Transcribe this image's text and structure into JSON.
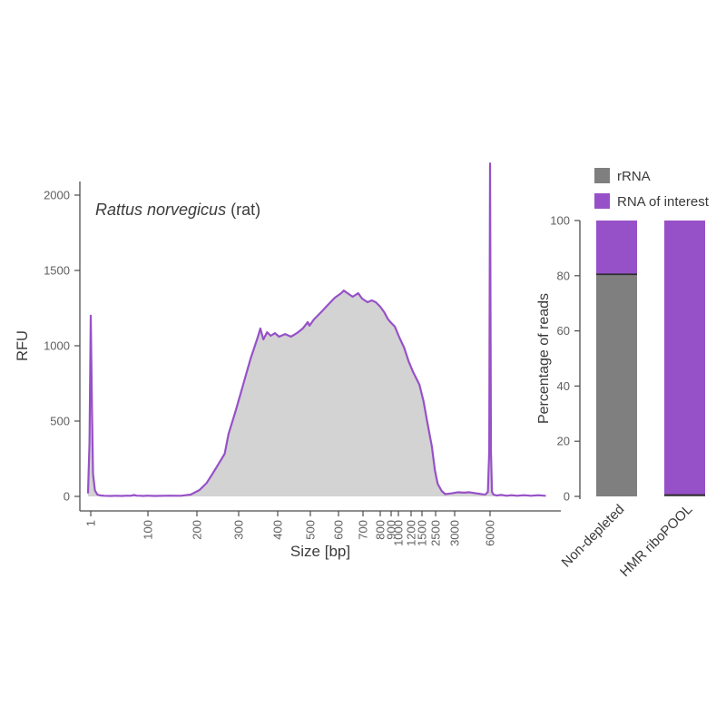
{
  "figure": {
    "background": "#ffffff"
  },
  "colors": {
    "purple": "#9751C8",
    "gray_bar": "#7F7F7F",
    "trace_fill": "#D3D3D3",
    "axis": "#4d4d4d",
    "tick_text": "#5f5f5f",
    "text": "#3a3a3a",
    "divider": "#2f2f2f"
  },
  "chart_data": [
    {
      "type": "area",
      "title_species": "Rattus norvegicus",
      "title_suffix": " (rat)",
      "xlabel": "Size [bp]",
      "ylabel": "RFU",
      "ylim": [
        0,
        2000
      ],
      "yticks": [
        0,
        500,
        1000,
        1500,
        2000
      ],
      "xticks": [
        1,
        100,
        200,
        300,
        400,
        500,
        600,
        700,
        800,
        900,
        1000,
        1200,
        1500,
        2500,
        3000,
        6000
      ],
      "x_scale": "instrument-log",
      "x_scale_anchors": [
        [
          1,
          0.023
        ],
        [
          100,
          0.1437
        ],
        [
          200,
          0.2471
        ],
        [
          300,
          0.3352
        ],
        [
          400,
          0.4176
        ],
        [
          500,
          0.4866
        ],
        [
          600,
          0.546
        ],
        [
          700,
          0.5977
        ],
        [
          800,
          0.6341
        ],
        [
          900,
          0.6571
        ],
        [
          1000,
          0.6724
        ],
        [
          1200,
          0.6992
        ],
        [
          1500,
          0.7222
        ],
        [
          2500,
          0.751
        ],
        [
          3000,
          0.7912
        ],
        [
          6000,
          0.8659
        ],
        [
          20000,
          1.0
        ]
      ],
      "line_color": "#9751C8",
      "fill_color": "#D3D3D3",
      "grid": false,
      "annotations": [
        "lower marker peak at 1 bp ~1200 RFU",
        "upper marker peak at 6000 bp ~2210 RFU (clipped above axis max)"
      ],
      "points": [
        [
          0.8,
          25
        ],
        [
          0.9,
          350
        ],
        [
          1,
          1200
        ],
        [
          1.1,
          600
        ],
        [
          1.2,
          150
        ],
        [
          1.4,
          40
        ],
        [
          1.7,
          12
        ],
        [
          2.2,
          6
        ],
        [
          3,
          4
        ],
        [
          5,
          3
        ],
        [
          8,
          4
        ],
        [
          12,
          3
        ],
        [
          18,
          5
        ],
        [
          25,
          4
        ],
        [
          33,
          9
        ],
        [
          40,
          5
        ],
        [
          55,
          4
        ],
        [
          70,
          3
        ],
        [
          90,
          5
        ],
        [
          110,
          3
        ],
        [
          135,
          5
        ],
        [
          160,
          4
        ],
        [
          183,
          12
        ],
        [
          205,
          42
        ],
        [
          220,
          90
        ],
        [
          238,
          175
        ],
        [
          262,
          283
        ],
        [
          272,
          416
        ],
        [
          292,
          572
        ],
        [
          310,
          741
        ],
        [
          327,
          910
        ],
        [
          345,
          1054
        ],
        [
          352,
          1115
        ],
        [
          360,
          1042
        ],
        [
          370,
          1090
        ],
        [
          380,
          1066
        ],
        [
          392,
          1084
        ],
        [
          404,
          1060
        ],
        [
          421,
          1078
        ],
        [
          438,
          1060
        ],
        [
          456,
          1084
        ],
        [
          475,
          1115
        ],
        [
          491,
          1157
        ],
        [
          497,
          1133
        ],
        [
          512,
          1175
        ],
        [
          536,
          1223
        ],
        [
          560,
          1271
        ],
        [
          586,
          1319
        ],
        [
          610,
          1349
        ],
        [
          620,
          1367
        ],
        [
          630,
          1355
        ],
        [
          656,
          1325
        ],
        [
          679,
          1349
        ],
        [
          696,
          1313
        ],
        [
          725,
          1289
        ],
        [
          749,
          1301
        ],
        [
          773,
          1289
        ],
        [
          800,
          1259
        ],
        [
          835,
          1223
        ],
        [
          870,
          1175
        ],
        [
          905,
          1150
        ],
        [
          950,
          1127
        ],
        [
          1014,
          1054
        ],
        [
          1086,
          988
        ],
        [
          1157,
          898
        ],
        [
          1250,
          825
        ],
        [
          1325,
          789
        ],
        [
          1425,
          741
        ],
        [
          1590,
          632
        ],
        [
          1830,
          494
        ],
        [
          2170,
          331
        ],
        [
          2430,
          175
        ],
        [
          2550,
          84
        ],
        [
          2650,
          36
        ],
        [
          2740,
          15
        ],
        [
          2900,
          20
        ],
        [
          3200,
          28
        ],
        [
          3600,
          25
        ],
        [
          4000,
          28
        ],
        [
          4400,
          22
        ],
        [
          4800,
          18
        ],
        [
          5200,
          14
        ],
        [
          5500,
          13
        ],
        [
          5750,
          30
        ],
        [
          5900,
          300
        ],
        [
          6000,
          2210
        ],
        [
          6100,
          300
        ],
        [
          6220,
          30
        ],
        [
          6400,
          12
        ],
        [
          6800,
          6
        ],
        [
          7400,
          10
        ],
        [
          8200,
          4
        ],
        [
          9000,
          8
        ],
        [
          10000,
          4
        ],
        [
          11500,
          8
        ],
        [
          13000,
          4
        ],
        [
          15000,
          8
        ],
        [
          17000,
          4
        ]
      ]
    },
    {
      "type": "bar",
      "stacked": true,
      "ylabel": "Percentage of reads",
      "ylim": [
        0,
        100
      ],
      "yticks": [
        0,
        20,
        40,
        60,
        80,
        100
      ],
      "categories": [
        "Non-depleted",
        "HMR riboPOOL"
      ],
      "series": [
        {
          "name": "rRNA",
          "color": "#7F7F7F",
          "values": [
            80.5,
            0.5
          ]
        },
        {
          "name": "RNA of interest",
          "color": "#9751C8",
          "values": [
            19.5,
            99.5
          ]
        }
      ],
      "legend_position": "top",
      "grid": false
    }
  ]
}
